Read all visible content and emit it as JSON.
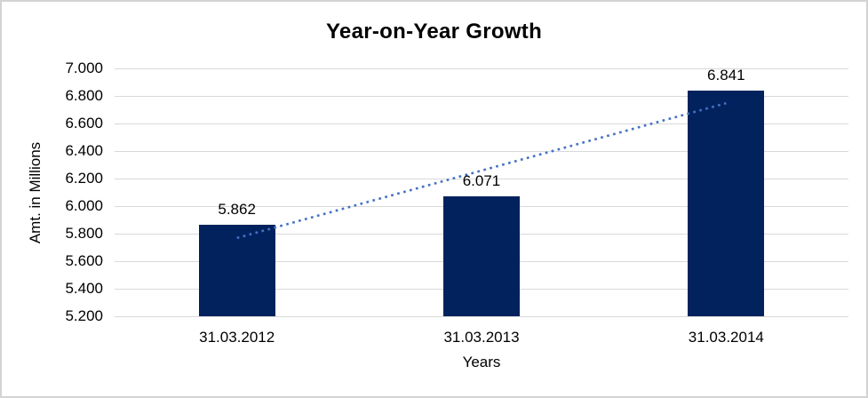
{
  "chart_data": {
    "type": "bar",
    "title": "Year-on-Year Growth",
    "categories": [
      "31.03.2012",
      "31.03.2013",
      "31.03.2014"
    ],
    "values": [
      5.862,
      6.071,
      6.841
    ],
    "value_labels": [
      "5.862",
      "6.071",
      "6.841"
    ],
    "xlabel": "Years",
    "ylabel": "Amt. in Millions",
    "ylim": [
      5.2,
      7.0
    ],
    "ytick_step": 0.2,
    "ytick_labels": [
      "5.200",
      "5.400",
      "5.600",
      "5.800",
      "6.000",
      "6.200",
      "6.400",
      "6.600",
      "6.800",
      "7.000"
    ],
    "grid": true,
    "legend_position": "none",
    "trendline": {
      "type": "linear",
      "style": "dotted"
    },
    "colors": {
      "bar": "#02225E",
      "trendline": "#4472C4",
      "gridline": "#D9D9D9",
      "text": "#000000",
      "border": "#D3D3D3",
      "background": "#FFFFFF"
    }
  }
}
